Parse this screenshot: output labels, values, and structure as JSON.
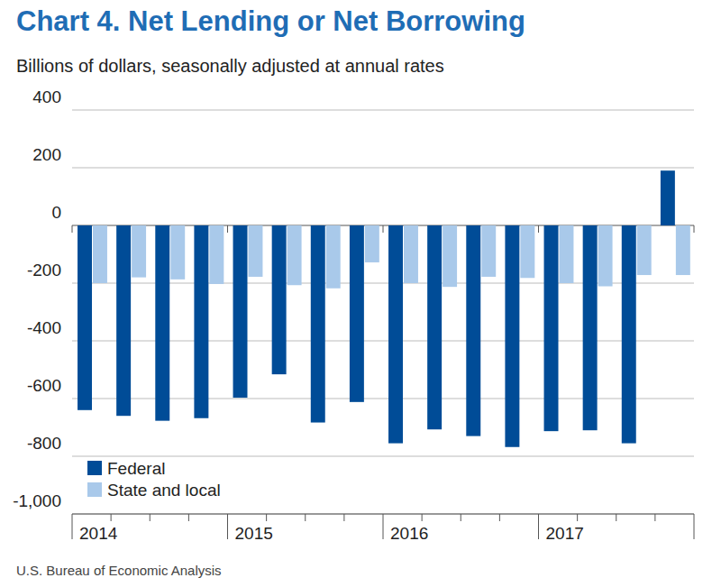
{
  "chart_data": {
    "type": "bar",
    "title": "Chart 4. Net Lending or Net Borrowing",
    "subtitle": "Billions of dollars, seasonally adjusted at annual rates",
    "source": "U.S. Bureau of Economic Analysis",
    "categories": [
      "2014",
      null,
      null,
      null,
      "2015",
      null,
      null,
      null,
      "2016",
      null,
      null,
      null,
      "2017",
      null,
      null,
      null
    ],
    "series": [
      {
        "name": "Federal",
        "color": "#004c97",
        "values": [
          -640,
          -660,
          -677,
          -668,
          -597,
          -516,
          -683,
          -612,
          -755,
          -707,
          -730,
          -768,
          -713,
          -710,
          -755,
          190
        ]
      },
      {
        "name": "State and local",
        "color": "#a9c9ea",
        "values": [
          -200,
          -180,
          -187,
          -203,
          -178,
          -207,
          -218,
          -128,
          -200,
          -213,
          -178,
          -182,
          -200,
          -211,
          -172,
          -172
        ]
      }
    ],
    "ylim": [
      -1000,
      400
    ],
    "yticks": [
      {
        "value": -1000,
        "label": "-1,000"
      },
      -800,
      -600,
      -400,
      -200,
      0,
      200,
      400
    ],
    "grid": true,
    "legend": "lower left"
  }
}
